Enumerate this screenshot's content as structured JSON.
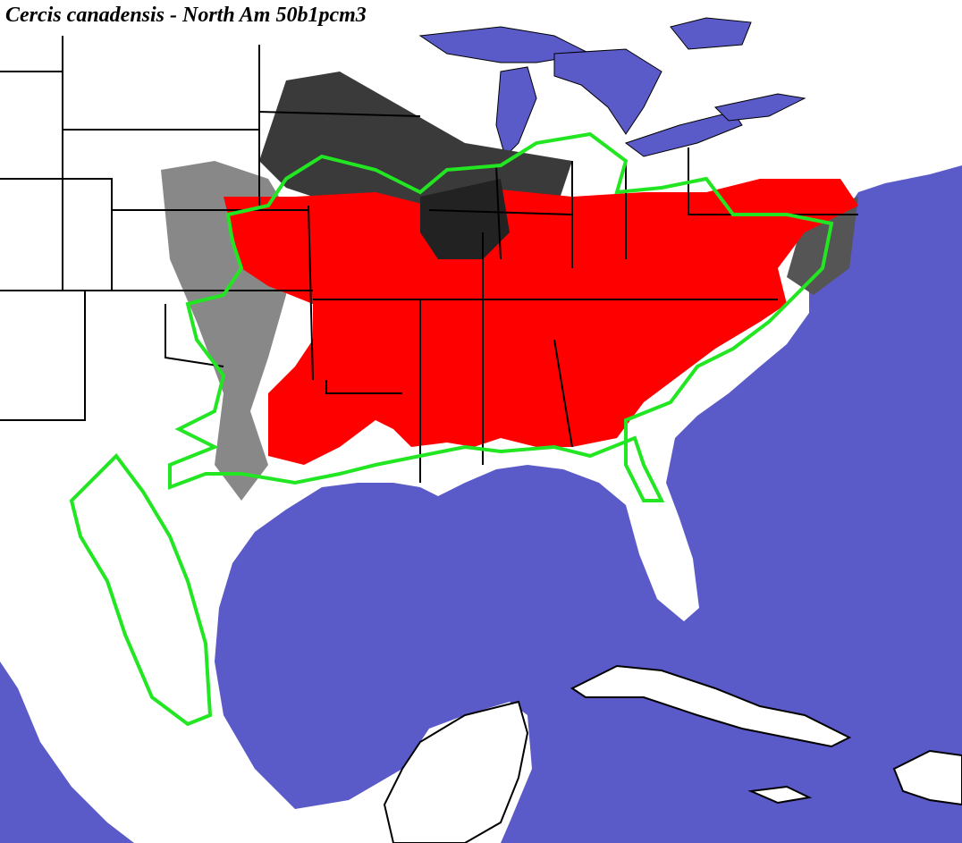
{
  "title": "Cercis canadensis - North Am 50b1pcm3"
}
